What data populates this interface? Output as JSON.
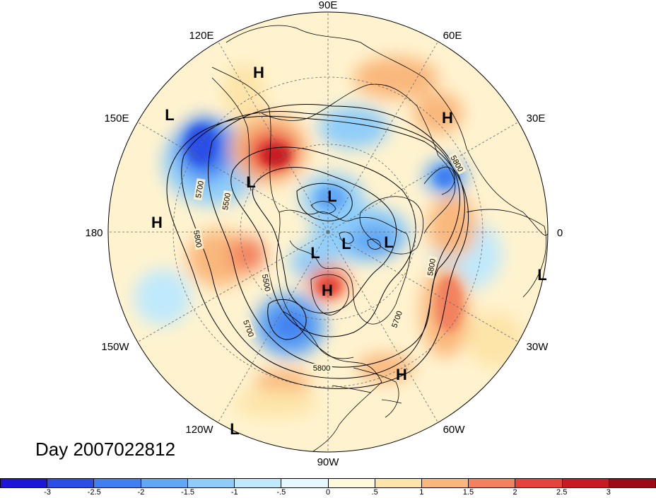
{
  "map": {
    "projection": "north-polar-stereographic",
    "longitude_labels": [
      {
        "text": "90E",
        "lon_deg": 90
      },
      {
        "text": "60E",
        "lon_deg": 60
      },
      {
        "text": "30E",
        "lon_deg": 30
      },
      {
        "text": "0",
        "lon_deg": 0
      },
      {
        "text": "30W",
        "lon_deg": -30
      },
      {
        "text": "60W",
        "lon_deg": -60
      },
      {
        "text": "90W",
        "lon_deg": -90
      },
      {
        "text": "120W",
        "lon_deg": -120
      },
      {
        "text": "150W",
        "lon_deg": -150
      },
      {
        "text": "180",
        "lon_deg": 180
      },
      {
        "text": "150E",
        "lon_deg": 150
      },
      {
        "text": "120E",
        "lon_deg": 120
      }
    ],
    "pressure_centers": [
      {
        "type": "H",
        "name": "high-east-siberia"
      },
      {
        "type": "L",
        "name": "low-west-pacific"
      },
      {
        "type": "H",
        "name": "high-north-pacific"
      },
      {
        "type": "L",
        "name": "low-bering"
      },
      {
        "type": "L",
        "name": "low-arctic"
      },
      {
        "type": "L",
        "name": "low-canada-1"
      },
      {
        "type": "L",
        "name": "low-canada-2"
      },
      {
        "type": "L",
        "name": "low-canada-3"
      },
      {
        "type": "H",
        "name": "high-hudson"
      },
      {
        "type": "H",
        "name": "high-ural"
      },
      {
        "type": "L",
        "name": "low-africa"
      },
      {
        "type": "H",
        "name": "high-atlantic"
      },
      {
        "type": "L",
        "name": "low-east-pacific"
      }
    ],
    "contour_labels": [
      "5700",
      "5500",
      "5800",
      "5800",
      "5500",
      "5700",
      "5700",
      "5800",
      "5800"
    ],
    "colors": {
      "land_outline": "#000000",
      "grid": "#555555",
      "neutral_pos": "#fff7d6",
      "neutral_neg": "#e4f7fd"
    }
  },
  "day_label": "Day 2007022812",
  "colorbar": {
    "ticks": [
      "-3",
      "-2.5",
      "-2",
      "-1.5",
      "-1",
      "-.5",
      "0",
      ".5",
      "1",
      "1.5",
      "2",
      "2.5",
      "3"
    ],
    "colors": [
      "#1d16d8",
      "#2b4fe6",
      "#3f7ff0",
      "#60a7f5",
      "#8fcdf9",
      "#bfe9fc",
      "#e6f8fe",
      "#fff9dc",
      "#fde4a8",
      "#f9b77b",
      "#f2825e",
      "#e6443b",
      "#c81a24",
      "#9c0a18"
    ]
  }
}
